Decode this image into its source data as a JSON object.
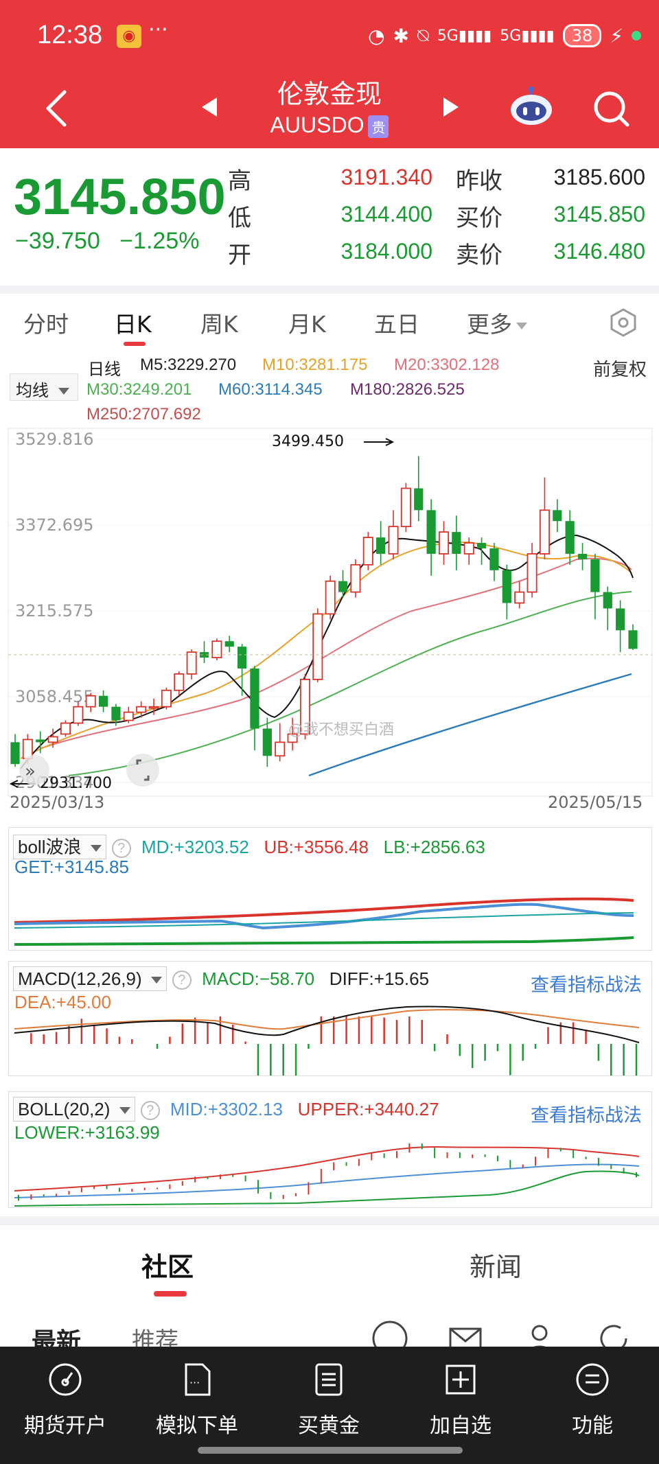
{
  "status": {
    "time": "12:38",
    "battery": "38"
  },
  "header": {
    "title": "伦敦金现",
    "symbol": "AUUSDO",
    "badge": "贵"
  },
  "quote": {
    "price": "3145.850",
    "change": "−39.750",
    "change_pct": "−1.25%",
    "high_label": "高",
    "high": "3191.340",
    "low_label": "低",
    "low": "3144.400",
    "open_label": "开",
    "open": "3184.000",
    "prev_close_label": "昨收",
    "prev_close": "3185.600",
    "bid_label": "买价",
    "bid": "3145.850",
    "ask_label": "卖价",
    "ask": "3146.480",
    "up_color": "#d9342b",
    "down_color": "#1a9a33"
  },
  "tabs": [
    "分时",
    "日K",
    "周K",
    "月K",
    "五日",
    "更多"
  ],
  "ma": {
    "button": "均线",
    "period": "日线",
    "adjust": "前复权",
    "m5": "M5:3229.270",
    "m10": "M10:3281.175",
    "m20": "M20:3302.128",
    "m30": "M30:3249.201",
    "m60": "M60:3114.345",
    "m180": "M180:2826.525",
    "m250": "M250:2707.692"
  },
  "chart_data": {
    "type": "candlestick",
    "y_ticks": [
      "3529.816",
      "3372.695",
      "3215.575",
      "3058.455",
      "2901.334"
    ],
    "high_annotation": "3499.450",
    "low_annotation": "2931.700",
    "start_date": "2025/03/13",
    "end_date": "2025/05/15",
    "watermark": "@我不想买白酒",
    "ylim": [
      2901.334,
      3529.816
    ],
    "candles": [
      [
        2975,
        2935,
        2990,
        2930
      ],
      [
        2945,
        2980,
        2990,
        2935
      ],
      [
        2980,
        2975,
        2995,
        2955
      ],
      [
        2975,
        2985,
        3000,
        2965
      ],
      [
        2990,
        3010,
        3015,
        2985
      ],
      [
        3010,
        3040,
        3050,
        3005
      ],
      [
        3040,
        3060,
        3065,
        3030
      ],
      [
        3060,
        3040,
        3070,
        3030
      ],
      [
        3040,
        3015,
        3045,
        3005
      ],
      [
        3015,
        3030,
        3040,
        3010
      ],
      [
        3030,
        3040,
        3050,
        3020
      ],
      [
        3040,
        3040,
        3055,
        3025
      ],
      [
        3040,
        3070,
        3075,
        3035
      ],
      [
        3070,
        3100,
        3105,
        3060
      ],
      [
        3100,
        3140,
        3145,
        3090
      ],
      [
        3140,
        3130,
        3160,
        3120
      ],
      [
        3130,
        3160,
        3165,
        3125
      ],
      [
        3160,
        3150,
        3170,
        3140
      ],
      [
        3150,
        3110,
        3155,
        3060
      ],
      [
        3110,
        3000,
        3115,
        2960
      ],
      [
        3000,
        2950,
        3020,
        2930
      ],
      [
        2950,
        2975,
        3010,
        2940
      ],
      [
        2975,
        2990,
        3020,
        2960
      ],
      [
        2990,
        3090,
        3100,
        2980
      ],
      [
        3090,
        3210,
        3220,
        3085
      ],
      [
        3210,
        3270,
        3280,
        3200
      ],
      [
        3270,
        3250,
        3290,
        3240
      ],
      [
        3250,
        3300,
        3310,
        3240
      ],
      [
        3300,
        3350,
        3360,
        3290
      ],
      [
        3350,
        3320,
        3380,
        3300
      ],
      [
        3320,
        3370,
        3400,
        3310
      ],
      [
        3370,
        3440,
        3450,
        3360
      ],
      [
        3440,
        3400,
        3499,
        3380
      ],
      [
        3400,
        3320,
        3420,
        3280
      ],
      [
        3320,
        3360,
        3380,
        3300
      ],
      [
        3360,
        3320,
        3390,
        3290
      ],
      [
        3320,
        3340,
        3350,
        3300
      ],
      [
        3340,
        3330,
        3350,
        3300
      ],
      [
        3330,
        3290,
        3340,
        3270
      ],
      [
        3290,
        3230,
        3300,
        3200
      ],
      [
        3230,
        3250,
        3270,
        3220
      ],
      [
        3250,
        3320,
        3340,
        3240
      ],
      [
        3320,
        3400,
        3460,
        3310
      ],
      [
        3400,
        3380,
        3420,
        3360
      ],
      [
        3380,
        3320,
        3400,
        3300
      ],
      [
        3320,
        3310,
        3340,
        3290
      ],
      [
        3310,
        3250,
        3320,
        3200
      ],
      [
        3250,
        3220,
        3260,
        3180
      ],
      [
        3220,
        3180,
        3235,
        3140
      ],
      [
        3180,
        3146,
        3191,
        3144
      ]
    ]
  },
  "boll_wave": {
    "label": "boll波浪",
    "md": "MD:+3203.52",
    "ub": "UB:+3556.48",
    "lb": "LB:+2856.63",
    "get": "GET:+3145.85"
  },
  "macd": {
    "label": "MACD(12,26,9)",
    "macd": "MACD:−58.70",
    "diff": "DIFF:+15.65",
    "dea": "DEA:+45.00",
    "link": "查看指标战法"
  },
  "boll": {
    "label": "BOLL(20,2)",
    "mid": "MID:+3302.13",
    "upper": "UPPER:+3440.27",
    "lower": "LOWER:+3163.99",
    "link": "查看指标战法"
  },
  "community": {
    "tabs": [
      "社区",
      "新闻"
    ],
    "subtabs": [
      "最新",
      "推荐"
    ]
  },
  "bottom_nav": [
    "期货开户",
    "模拟下单",
    "买黄金",
    "加自选",
    "功能"
  ]
}
